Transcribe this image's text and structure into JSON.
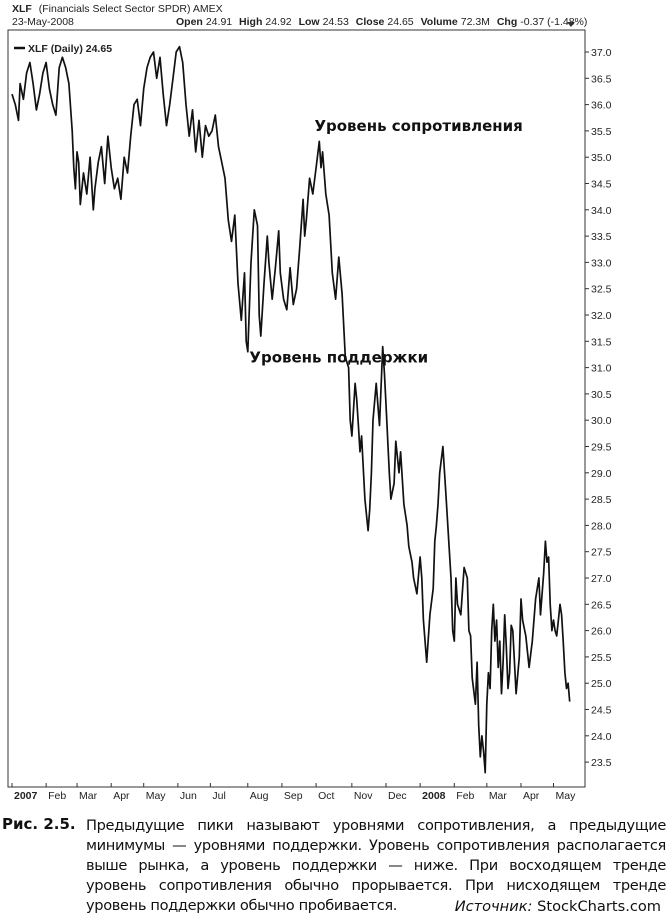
{
  "header": {
    "symbol": "XLF",
    "name": "(Financials Select Sector SPDR) AMEX",
    "date": "23-May-2008",
    "open_label": "Open",
    "open": "24.91",
    "high_label": "High",
    "high": "24.92",
    "low_label": "Low",
    "low": "24.53",
    "close_label": "Close",
    "close": "24.65",
    "volume_label": "Volume",
    "volume": "72.3M",
    "chg_label": "Chg",
    "chg": "-0.37 (-1.48%)",
    "legend": "XLF (Daily) 24.65"
  },
  "chart_data": {
    "type": "line",
    "x_tick_labels": [
      "2007",
      "Feb",
      "Mar",
      "Apr",
      "May",
      "Jun",
      "Jul",
      "Aug",
      "Sep",
      "Oct",
      "Nov",
      "Dec",
      "2008",
      "Feb",
      "Mar",
      "Apr",
      "May"
    ],
    "y_tick_labels": [
      "37.0",
      "36.5",
      "36.0",
      "35.5",
      "35.0",
      "34.5",
      "34.0",
      "33.5",
      "33.0",
      "32.5",
      "32.0",
      "31.5",
      "31.0",
      "30.5",
      "30.0",
      "29.5",
      "29.0",
      "28.5",
      "28.0",
      "27.5",
      "27.0",
      "26.5",
      "26.0",
      "25.5",
      "25.0",
      "24.5",
      "24.0",
      "23.5"
    ],
    "ylim": [
      23.2,
      37.15
    ],
    "grid": false,
    "x_ticks": [
      0,
      21,
      40,
      61,
      81,
      102,
      122,
      145,
      166,
      187,
      209,
      230,
      251,
      272,
      292,
      313,
      333
    ],
    "series": [
      {
        "name": "XLF (Daily)",
        "points": [
          [
            0,
            36.2
          ],
          [
            2,
            36.0
          ],
          [
            4,
            35.7
          ],
          [
            5,
            36.4
          ],
          [
            7,
            36.1
          ],
          [
            9,
            36.6
          ],
          [
            11,
            36.8
          ],
          [
            13,
            36.4
          ],
          [
            15,
            35.9
          ],
          [
            17,
            36.2
          ],
          [
            19,
            36.6
          ],
          [
            21,
            36.8
          ],
          [
            23,
            36.3
          ],
          [
            25,
            36.0
          ],
          [
            27,
            35.8
          ],
          [
            29,
            36.7
          ],
          [
            31,
            36.9
          ],
          [
            33,
            36.7
          ],
          [
            35,
            36.4
          ],
          [
            37,
            35.5
          ],
          [
            38,
            34.8
          ],
          [
            39,
            34.4
          ],
          [
            40,
            35.1
          ],
          [
            41,
            34.9
          ],
          [
            42,
            34.1
          ],
          [
            44,
            34.7
          ],
          [
            46,
            34.3
          ],
          [
            48,
            35.0
          ],
          [
            50,
            34.0
          ],
          [
            51,
            34.4
          ],
          [
            53,
            34.9
          ],
          [
            55,
            35.2
          ],
          [
            57,
            34.5
          ],
          [
            59,
            35.4
          ],
          [
            61,
            34.8
          ],
          [
            63,
            34.4
          ],
          [
            65,
            34.6
          ],
          [
            67,
            34.2
          ],
          [
            69,
            35.0
          ],
          [
            71,
            34.7
          ],
          [
            73,
            35.4
          ],
          [
            75,
            36.0
          ],
          [
            77,
            36.1
          ],
          [
            79,
            35.6
          ],
          [
            81,
            36.3
          ],
          [
            83,
            36.7
          ],
          [
            85,
            36.9
          ],
          [
            87,
            37.0
          ],
          [
            89,
            36.5
          ],
          [
            91,
            36.9
          ],
          [
            93,
            36.2
          ],
          [
            95,
            35.6
          ],
          [
            97,
            36.0
          ],
          [
            99,
            36.5
          ],
          [
            101,
            37.0
          ],
          [
            103,
            37.1
          ],
          [
            105,
            36.8
          ],
          [
            107,
            36.0
          ],
          [
            109,
            35.4
          ],
          [
            111,
            35.9
          ],
          [
            113,
            35.1
          ],
          [
            115,
            35.7
          ],
          [
            117,
            35.0
          ],
          [
            119,
            35.6
          ],
          [
            121,
            35.4
          ],
          [
            123,
            35.5
          ],
          [
            125,
            35.8
          ],
          [
            127,
            35.2
          ],
          [
            129,
            34.9
          ],
          [
            131,
            34.6
          ],
          [
            133,
            33.8
          ],
          [
            135,
            33.4
          ],
          [
            137,
            33.9
          ],
          [
            139,
            32.6
          ],
          [
            141,
            31.9
          ],
          [
            143,
            32.8
          ],
          [
            144,
            31.5
          ],
          [
            145,
            31.3
          ],
          [
            147,
            33.0
          ],
          [
            149,
            34.0
          ],
          [
            151,
            33.7
          ],
          [
            152,
            32.0
          ],
          [
            153,
            31.6
          ],
          [
            155,
            32.6
          ],
          [
            157,
            33.5
          ],
          [
            158,
            33.0
          ],
          [
            160,
            32.3
          ],
          [
            162,
            32.9
          ],
          [
            164,
            33.6
          ],
          [
            165,
            32.8
          ],
          [
            167,
            32.3
          ],
          [
            169,
            32.1
          ],
          [
            171,
            32.9
          ],
          [
            173,
            32.2
          ],
          [
            175,
            32.5
          ],
          [
            177,
            33.3
          ],
          [
            179,
            34.2
          ],
          [
            180,
            33.5
          ],
          [
            181,
            33.8
          ],
          [
            183,
            34.6
          ],
          [
            185,
            34.3
          ],
          [
            187,
            34.8
          ],
          [
            189,
            35.3
          ],
          [
            190,
            34.8
          ],
          [
            191,
            35.1
          ],
          [
            193,
            34.3
          ],
          [
            195,
            33.9
          ],
          [
            197,
            32.8
          ],
          [
            199,
            32.3
          ],
          [
            201,
            33.1
          ],
          [
            203,
            32.4
          ],
          [
            205,
            31.2
          ],
          [
            207,
            31.0
          ],
          [
            208,
            30.0
          ],
          [
            209,
            29.7
          ],
          [
            211,
            30.7
          ],
          [
            212,
            30.4
          ],
          [
            213,
            29.9
          ],
          [
            214,
            29.4
          ],
          [
            215,
            29.7
          ],
          [
            217,
            28.5
          ],
          [
            218,
            28.2
          ],
          [
            219,
            27.9
          ],
          [
            220,
            28.3
          ],
          [
            221,
            29.0
          ],
          [
            222,
            30.0
          ],
          [
            224,
            30.7
          ],
          [
            226,
            29.9
          ],
          [
            228,
            31.4
          ],
          [
            229,
            30.9
          ],
          [
            230,
            30.3
          ],
          [
            232,
            29.0
          ],
          [
            233,
            28.5
          ],
          [
            235,
            28.8
          ],
          [
            236,
            29.6
          ],
          [
            238,
            29.0
          ],
          [
            239,
            29.4
          ],
          [
            241,
            28.4
          ],
          [
            243,
            28.0
          ],
          [
            244,
            27.6
          ],
          [
            246,
            27.3
          ],
          [
            247,
            27.0
          ],
          [
            249,
            26.7
          ],
          [
            251,
            27.4
          ],
          [
            252,
            27.0
          ],
          [
            253,
            26.2
          ],
          [
            255,
            25.4
          ],
          [
            257,
            26.3
          ],
          [
            259,
            26.8
          ],
          [
            260,
            27.7
          ],
          [
            261,
            28.0
          ],
          [
            262,
            28.4
          ],
          [
            263,
            29.0
          ],
          [
            265,
            29.5
          ],
          [
            267,
            28.5
          ],
          [
            269,
            27.5
          ],
          [
            270,
            27.0
          ],
          [
            271,
            26.0
          ],
          [
            272,
            25.8
          ],
          [
            273,
            27.0
          ],
          [
            274,
            26.5
          ],
          [
            276,
            26.3
          ],
          [
            278,
            27.2
          ],
          [
            280,
            27.0
          ],
          [
            281,
            26.0
          ],
          [
            282,
            25.9
          ],
          [
            283,
            25.1
          ],
          [
            285,
            24.6
          ],
          [
            286,
            25.4
          ],
          [
            287,
            24.2
          ],
          [
            288,
            23.6
          ],
          [
            289,
            24.0
          ],
          [
            290,
            23.7
          ],
          [
            291,
            23.3
          ],
          [
            292,
            24.6
          ],
          [
            293,
            25.2
          ],
          [
            294,
            24.9
          ],
          [
            295,
            26.0
          ],
          [
            296,
            26.5
          ],
          [
            297,
            25.8
          ],
          [
            298,
            26.2
          ],
          [
            299,
            25.3
          ],
          [
            300,
            25.8
          ],
          [
            301,
            24.8
          ],
          [
            302,
            25.4
          ],
          [
            303,
            26.3
          ],
          [
            304,
            25.7
          ],
          [
            305,
            24.9
          ],
          [
            306,
            25.2
          ],
          [
            307,
            26.1
          ],
          [
            308,
            26.0
          ],
          [
            310,
            24.8
          ],
          [
            312,
            25.5
          ],
          [
            313,
            26.6
          ],
          [
            314,
            26.2
          ],
          [
            316,
            25.9
          ],
          [
            318,
            25.3
          ],
          [
            320,
            25.8
          ],
          [
            322,
            26.6
          ],
          [
            324,
            27.0
          ],
          [
            325,
            26.3
          ],
          [
            327,
            27.1
          ],
          [
            328,
            27.7
          ],
          [
            329,
            27.3
          ],
          [
            330,
            27.4
          ],
          [
            331,
            26.5
          ],
          [
            332,
            26.0
          ],
          [
            333,
            26.2
          ],
          [
            334,
            26.0
          ],
          [
            335,
            25.9
          ],
          [
            336,
            26.2
          ],
          [
            337,
            26.5
          ],
          [
            338,
            26.3
          ],
          [
            339,
            25.8
          ],
          [
            340,
            25.2
          ],
          [
            341,
            24.9
          ],
          [
            342,
            25.0
          ],
          [
            343,
            24.65
          ]
        ]
      }
    ],
    "annotations": [
      {
        "text": "Уровень сопротивления",
        "x": 186,
        "y": 35.5
      },
      {
        "text": "Уровень поддержки",
        "x": 146,
        "y": 31.1
      }
    ]
  },
  "caption": {
    "figure_label": "Рис. 2.5.",
    "text": "Предыдущие пики называют уровнями сопротивления, а предыдущие минимумы — уровнями поддержки. Уровень сопротивления располагается выше рынка, а уровень поддержки — ниже. При восходящем тренде уровень сопротивления обычно прорывается. При нисходящем тренде уровень поддержки обычно пробивается.",
    "source_label": "Источник:",
    "source": "StockCharts.com"
  }
}
